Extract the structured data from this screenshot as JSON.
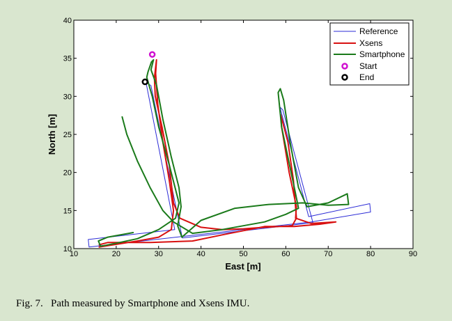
{
  "chart_data": {
    "type": "line",
    "xlabel": "East [m]",
    "ylabel": "North [m]",
    "xlim": [
      10,
      90
    ],
    "ylim": [
      10,
      40
    ],
    "xticks": [
      10,
      20,
      30,
      40,
      50,
      60,
      70,
      80,
      90
    ],
    "yticks": [
      10,
      15,
      20,
      25,
      30,
      35,
      40
    ],
    "grid": false,
    "legend_position": "top-right",
    "legend": [
      "Reference",
      "Xsens",
      "Smartphone",
      "Start",
      "End"
    ],
    "series": [
      {
        "name": "Reference",
        "color": "#2b2bd6",
        "points": [
          [
            13.4,
            11.2
          ],
          [
            13.6,
            10.2
          ],
          [
            66,
            13.5
          ],
          [
            80,
            14.8
          ],
          [
            79.8,
            15.9
          ],
          [
            65.4,
            14.2
          ],
          [
            58.6,
            28.6
          ],
          [
            59.3,
            28.2
          ],
          [
            66.4,
            13.4
          ],
          [
            35.6,
            11.4
          ],
          [
            28.2,
            31.4
          ],
          [
            27,
            31.9
          ],
          [
            33.8,
            12.5
          ],
          [
            13.4,
            11.2
          ]
        ]
      },
      {
        "name": "Xsens",
        "color": "#d81010",
        "points": [
          [
            16,
            10.2
          ],
          [
            25,
            11
          ],
          [
            30,
            11.5
          ],
          [
            33,
            12.5
          ],
          [
            33.5,
            15
          ],
          [
            32.5,
            19
          ],
          [
            31,
            24
          ],
          [
            29.8,
            29
          ],
          [
            29.3,
            33
          ],
          [
            29.5,
            34.8
          ],
          [
            29,
            32.4
          ],
          [
            29.2,
            30
          ],
          [
            30.8,
            26
          ],
          [
            32.5,
            21
          ],
          [
            33.5,
            16
          ],
          [
            35,
            14
          ],
          [
            40,
            12.8
          ],
          [
            45,
            12.5
          ],
          [
            50,
            12.6
          ],
          [
            55,
            12.8
          ],
          [
            61.5,
            13
          ],
          [
            62.5,
            14
          ],
          [
            61.8,
            19
          ],
          [
            60.5,
            24
          ],
          [
            58.8,
            27.6
          ],
          [
            59,
            26
          ],
          [
            60.8,
            20
          ],
          [
            62.5,
            15.5
          ],
          [
            62.3,
            14
          ],
          [
            66,
            13.3
          ],
          [
            71.8,
            13.5
          ],
          [
            68,
            13.2
          ],
          [
            62,
            12.9
          ],
          [
            55,
            12.9
          ],
          [
            45,
            11.8
          ],
          [
            38,
            11
          ],
          [
            28,
            10.8
          ],
          [
            18,
            10.8
          ],
          [
            16,
            10.5
          ]
        ]
      },
      {
        "name": "Smartphone",
        "color": "#1a7a1a",
        "points": [
          [
            21.4,
            27.3
          ],
          [
            22.5,
            25
          ],
          [
            25,
            21.5
          ],
          [
            28,
            18
          ],
          [
            31,
            15
          ],
          [
            33.5,
            13.5
          ],
          [
            38,
            12
          ],
          [
            45,
            12.5
          ],
          [
            50,
            13
          ],
          [
            55,
            13.5
          ],
          [
            60,
            14.5
          ],
          [
            63,
            15.3
          ],
          [
            62,
            18
          ],
          [
            60.5,
            22
          ],
          [
            59,
            26
          ],
          [
            58.2,
            30.5
          ],
          [
            58.7,
            31
          ],
          [
            59.5,
            29.5
          ],
          [
            61,
            24
          ],
          [
            63,
            18
          ],
          [
            65,
            15.5
          ],
          [
            70,
            16
          ],
          [
            74.5,
            17.2
          ],
          [
            74.8,
            15.8
          ],
          [
            70,
            15.7
          ],
          [
            64,
            16
          ],
          [
            56,
            15.8
          ],
          [
            48,
            15.3
          ],
          [
            40,
            13.7
          ],
          [
            35.5,
            11.5
          ],
          [
            34.5,
            13
          ],
          [
            35.3,
            15.5
          ],
          [
            34.8,
            18
          ],
          [
            33,
            22
          ],
          [
            31,
            27
          ],
          [
            29.5,
            31.5
          ],
          [
            28.2,
            33.5
          ],
          [
            28.8,
            34.8
          ],
          [
            28.3,
            34.5
          ],
          [
            27.5,
            33.2
          ],
          [
            27.2,
            32.5
          ],
          [
            28.5,
            30
          ],
          [
            30,
            26
          ],
          [
            32.5,
            21
          ],
          [
            34.8,
            16
          ],
          [
            34,
            14
          ],
          [
            30,
            12.5
          ],
          [
            25,
            11.3
          ],
          [
            20,
            10.7
          ],
          [
            16.3,
            10.3
          ],
          [
            15.8,
            11
          ],
          [
            18,
            11.5
          ],
          [
            24,
            12.1
          ]
        ]
      }
    ],
    "markers": [
      {
        "name": "Start",
        "x": 28.5,
        "y": 35.5,
        "color": "#d010d0"
      },
      {
        "name": "End",
        "x": 26.8,
        "y": 31.9,
        "color": "#000000"
      }
    ]
  },
  "caption": "Fig. 7.   Path measured by Smartphone and Xsens IMU."
}
